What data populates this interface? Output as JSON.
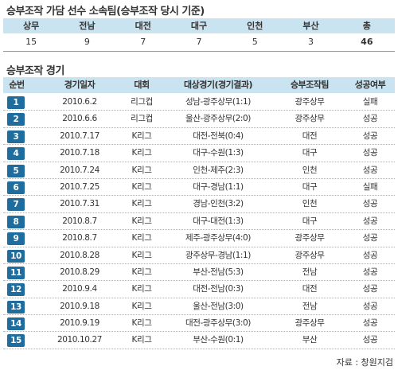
{
  "summary": {
    "title": "승부조작 가담 선수 소속팀(승부조작 당시 기준)",
    "headers": [
      "상무",
      "전남",
      "대전",
      "대구",
      "인천",
      "부산",
      "총"
    ],
    "values": [
      "15",
      "9",
      "7",
      "7",
      "5",
      "3",
      "46"
    ]
  },
  "matches": {
    "title": "승부조작 경기",
    "headers": [
      "순번",
      "경기일자",
      "대회",
      "대상경기(경기결과)",
      "승부조작팀",
      "성공여부"
    ],
    "rows": [
      {
        "no": "1",
        "date": "2010.6.2",
        "competition": "리그컵",
        "match": "성남-광주상무(1:1)",
        "team": "광주상무",
        "result": "실패"
      },
      {
        "no": "2",
        "date": "2010.6.6",
        "competition": "리그컵",
        "match": "울산-광주상무(2:0)",
        "team": "광주상무",
        "result": "성공"
      },
      {
        "no": "3",
        "date": "2010.7.17",
        "competition": "K리그",
        "match": "대전-전북(0:4)",
        "team": "대전",
        "result": "성공"
      },
      {
        "no": "4",
        "date": "2010.7.18",
        "competition": "K리그",
        "match": "대구-수원(1:3)",
        "team": "대구",
        "result": "성공"
      },
      {
        "no": "5",
        "date": "2010.7.24",
        "competition": "K리그",
        "match": "인천-제주(2:3)",
        "team": "인천",
        "result": "성공"
      },
      {
        "no": "6",
        "date": "2010.7.25",
        "competition": "K리그",
        "match": "대구-경남(1:1)",
        "team": "대구",
        "result": "실패"
      },
      {
        "no": "7",
        "date": "2010.7.31",
        "competition": "K리그",
        "match": "경남-인천(3:2)",
        "team": "인천",
        "result": "성공"
      },
      {
        "no": "8",
        "date": "2010.8.7",
        "competition": "K리그",
        "match": "대구-대전(1:3)",
        "team": "대구",
        "result": "성공"
      },
      {
        "no": "9",
        "date": "2010.8.7",
        "competition": "K리그",
        "match": "제주-광주상무(4:0)",
        "team": "광주상무",
        "result": "성공"
      },
      {
        "no": "10",
        "date": "2010.8.28",
        "competition": "K리그",
        "match": "광주상무-경남(1:1)",
        "team": "광주상무",
        "result": "성공"
      },
      {
        "no": "11",
        "date": "2010.8.29",
        "competition": "K리그",
        "match": "부산-전남(5:3)",
        "team": "전남",
        "result": "성공"
      },
      {
        "no": "12",
        "date": "2010.9.4",
        "competition": "K리그",
        "match": "대전-전남(0:3)",
        "team": "대전",
        "result": "성공"
      },
      {
        "no": "13",
        "date": "2010.9.18",
        "competition": "K리그",
        "match": "울산-전남(3:0)",
        "team": "전남",
        "result": "성공"
      },
      {
        "no": "14",
        "date": "2010.9.19",
        "competition": "K리그",
        "match": "대전-광주상무(3:0)",
        "team": "광주상무",
        "result": "성공"
      },
      {
        "no": "15",
        "date": "2010.10.27",
        "competition": "K리그",
        "match": "부산-수원(0:1)",
        "team": "부산",
        "result": "성공"
      }
    ]
  },
  "source": "자료 : 창원지검"
}
